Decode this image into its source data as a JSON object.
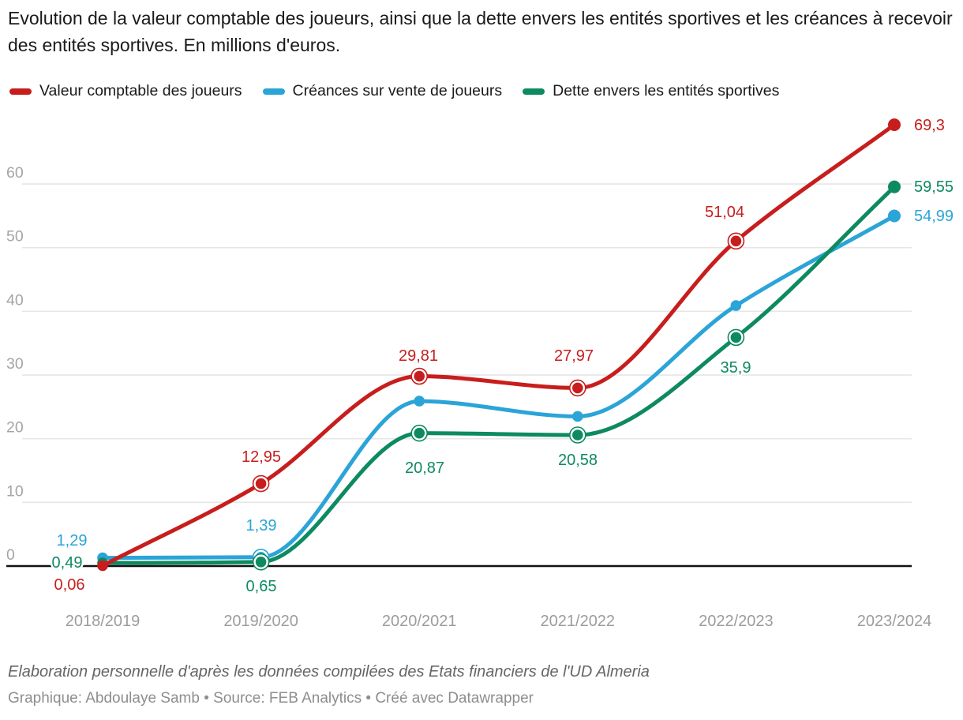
{
  "chart_data": {
    "type": "line",
    "title": "Evolution de la valeur comptable des joueurs, ainsi que la dette envers les entités sportives et les créances à recevoir des entités sportives. En millions d'euros.",
    "categories": [
      "2018/2019",
      "2019/2020",
      "2020/2021",
      "2021/2022",
      "2022/2023",
      "2023/2024"
    ],
    "series": [
      {
        "name": "Valeur comptable des joueurs",
        "color": "#c71e1d",
        "values": [
          0.06,
          12.95,
          29.81,
          27.97,
          51.04,
          69.3
        ],
        "labels": [
          "0,06",
          "12,95",
          "29,81",
          "27,97",
          "51,04",
          "69,3"
        ],
        "ringed": [
          false,
          true,
          true,
          true,
          true,
          false
        ]
      },
      {
        "name": "Créances sur vente de joueurs",
        "color": "#2ba4d7",
        "values": [
          1.29,
          1.39,
          25.9,
          23.5,
          40.9,
          54.99
        ],
        "labels": [
          "1,29",
          "1,39",
          null,
          null,
          null,
          "54,99"
        ],
        "ringed": [
          false,
          true,
          false,
          false,
          false,
          false
        ]
      },
      {
        "name": "Dette envers les entités sportives",
        "color": "#0d8a61",
        "values": [
          0.49,
          0.65,
          20.87,
          20.58,
          35.9,
          59.55
        ],
        "labels": [
          "0,49",
          "0,65",
          "20,87",
          "20,58",
          "35,9",
          "59,55"
        ],
        "ringed": [
          false,
          true,
          true,
          true,
          true,
          false
        ]
      }
    ],
    "y_ticks": [
      0,
      10,
      20,
      30,
      40,
      50,
      60
    ],
    "ylim": [
      0,
      71.5
    ],
    "xlabel": "",
    "ylabel": "",
    "grid": "horizontal",
    "legend_position": "top",
    "colors": {
      "grid": "#e6e6e6",
      "zero_line": "#111111",
      "y_tick_text": "#a4a4a9",
      "x_tick_text": "#9c9ca1"
    }
  },
  "footer": {
    "footnote": "Elaboration personnelle d'après les données compilées des Etats financiers de l'UD Almeria",
    "byline": "Graphique: Abdoulaye Samb • Source: FEB Analytics • Créé avec Datawrapper"
  }
}
